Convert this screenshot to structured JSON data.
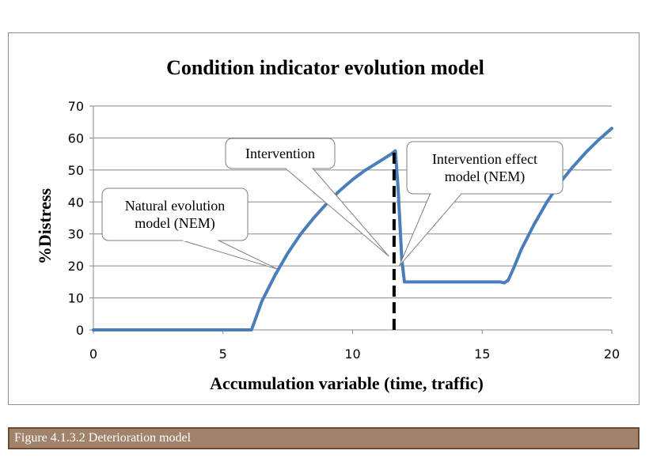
{
  "chart_data": {
    "type": "line",
    "title": "Condition indicator evolution model",
    "xlabel": "Accumulation variable (time, traffic)",
    "ylabel": "%Distress",
    "xlim": [
      0,
      20
    ],
    "ylim": [
      0,
      70
    ],
    "x_ticks": [
      "0",
      "5",
      "10",
      "15",
      "20"
    ],
    "y_ticks": [
      "0",
      "10",
      "20",
      "30",
      "40",
      "50",
      "60",
      "70"
    ],
    "grid": "horizontal",
    "legend": "none",
    "series": [
      {
        "color": "#4a7ebb",
        "x": [
          0,
          2,
          4,
          6,
          6.1,
          6.5,
          7,
          7.5,
          8,
          8.5,
          9,
          9.5,
          10,
          10.5,
          11,
          11.5,
          11.65,
          11.75,
          11.9,
          12.0,
          12.3,
          13,
          14,
          15,
          15.7,
          15.85,
          16.0,
          16.2,
          16.5,
          17,
          17.5,
          18,
          18.5,
          19,
          19.5,
          20
        ],
        "y": [
          0,
          0,
          0,
          0,
          0,
          9,
          17,
          24,
          30,
          35,
          39.5,
          43.5,
          47,
          50,
          52.5,
          55,
          56,
          45,
          22,
          15,
          15,
          15,
          15,
          15,
          15,
          14.7,
          15.5,
          19,
          25,
          33,
          40,
          46,
          51,
          55.5,
          59.5,
          63
        ]
      },
      {
        "color": "#000000",
        "style": "dashed",
        "x": [
          11.6,
          11.6
        ],
        "y": [
          0,
          56
        ]
      }
    ],
    "annotations": [
      {
        "label": "Natural evolution model (NEM)",
        "lines": [
          "Natural evolution",
          "model (NEM)"
        ],
        "points_to": [
          7.1,
          19
        ]
      },
      {
        "label": "Intervention",
        "lines": [
          "Intervention"
        ],
        "points_to": [
          11.4,
          23
        ]
      },
      {
        "label": "Intervention effect model (NEM)",
        "lines": [
          "Intervention effect",
          "model (NEM)"
        ],
        "points_to": [
          11.8,
          20
        ]
      }
    ]
  },
  "caption": "Figure 4.1.3.2 Deterioration model"
}
